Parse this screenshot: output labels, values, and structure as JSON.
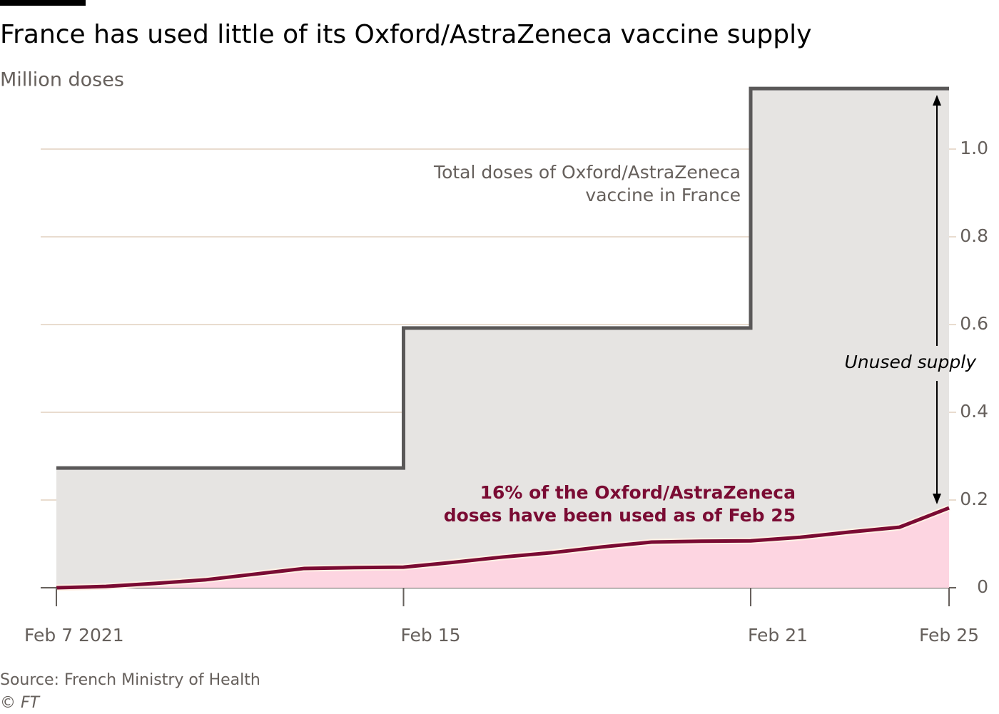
{
  "chart_data": {
    "type": "step-area",
    "title": "France has used little of its Oxford/AstraZeneca vaccine supply",
    "subtitle": "Million doses",
    "categories": [
      "Feb 7 2021",
      null,
      null,
      null,
      null,
      null,
      null,
      "Feb 15",
      null,
      null,
      null,
      null,
      null,
      null,
      "Feb 21",
      null,
      null,
      null,
      "Feb 25"
    ],
    "series": [
      {
        "name": "Total doses of Oxford/AstraZeneca vaccine in France",
        "color": "#5a5858",
        "fill": "#e6e4e2",
        "step": true,
        "values": [
          0.273,
          0.273,
          0.273,
          0.273,
          0.273,
          0.273,
          0.273,
          0.592,
          0.592,
          0.592,
          0.592,
          0.592,
          0.592,
          0.592,
          1.138,
          1.138,
          1.138,
          1.138,
          1.138
        ]
      },
      {
        "name": "Doses used",
        "color": "#7a0b33",
        "fill": "#fdd5e1",
        "step": false,
        "values": [
          0,
          0.003,
          0.01,
          0.018,
          0.031,
          0.044,
          0.046,
          0.047,
          0.058,
          0.07,
          0.08,
          0.093,
          0.104,
          0.106,
          0.107,
          0.115,
          0.127,
          0.138,
          0.182
        ]
      }
    ],
    "ylim": [
      0,
      1.15
    ],
    "yticks": [
      0,
      0.2,
      0.4,
      0.6,
      0.8,
      {
        "value": 1,
        "label": "1.0"
      }
    ],
    "grid": true,
    "annotations": {
      "total": [
        "Total doses of Oxford/AstraZeneca",
        "vaccine in France"
      ],
      "unused": "Unused supply",
      "used": [
        "16% of the Oxford/AstraZeneca",
        "doses have been used as of Feb 25"
      ]
    },
    "source": "Source: French Ministry of Health",
    "credit": "© FT"
  }
}
